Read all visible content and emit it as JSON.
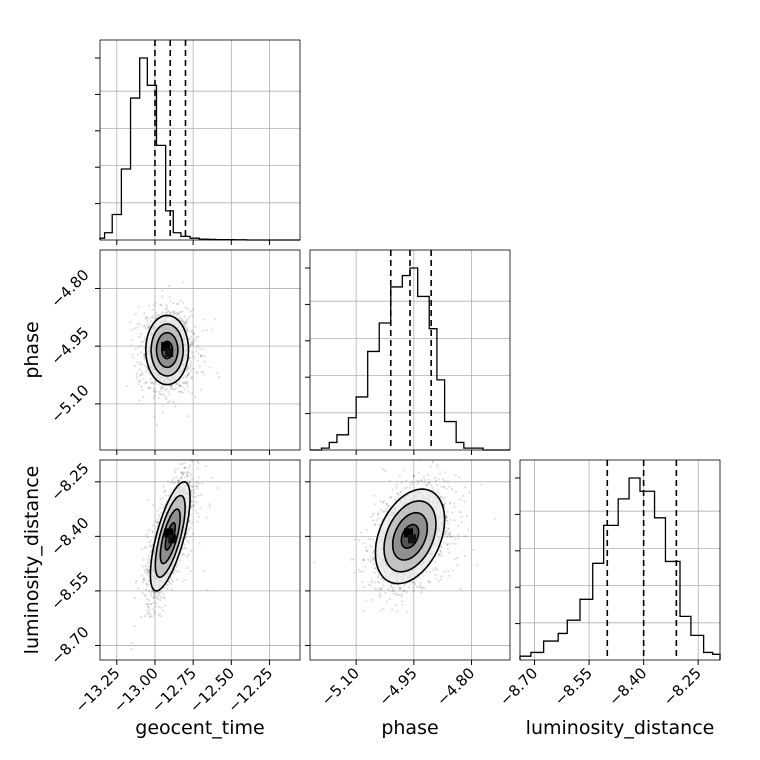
{
  "chart_data": {
    "type": "corner",
    "parameters": [
      "geocent_time",
      "phase",
      "luminosity_distance"
    ],
    "axis_labels": {
      "x": [
        "geocent_time",
        "phase",
        "luminosity_distance"
      ],
      "y": [
        "phase",
        "luminosity_distance"
      ]
    },
    "ranges": {
      "geocent_time": [
        -13.36,
        -12.05
      ],
      "phase": [
        -5.22,
        -4.7
      ],
      "luminosity_distance": [
        -8.74,
        -8.19
      ]
    },
    "ticks": {
      "geocent_time": {
        "values": [
          -13.25,
          -13.0,
          -12.75,
          -12.5,
          -12.25
        ],
        "labels": [
          "−13.25",
          "−13.00",
          "−12.75",
          "−12.50",
          "−12.25"
        ]
      },
      "phase": {
        "values": [
          -5.1,
          -4.95,
          -4.8
        ],
        "labels": [
          "−5.10",
          "−4.95",
          "−4.80"
        ]
      },
      "luminosity_distance": {
        "values": [
          -8.7,
          -8.55,
          -8.4,
          -8.25
        ],
        "labels": [
          "−8.70",
          "−8.55",
          "−8.40",
          "−8.25"
        ]
      }
    },
    "quantiles": {
      "geocent_time": [
        -13.0,
        -12.9,
        -12.8
      ],
      "phase": [
        -5.01,
        -4.96,
        -4.905
      ],
      "luminosity_distance": [
        -8.5,
        -8.4,
        -8.31
      ]
    },
    "histograms": {
      "geocent_time": {
        "edges": [
          -13.36,
          -13.33,
          -13.28,
          -13.22,
          -13.16,
          -13.1,
          -13.05,
          -12.99,
          -12.93,
          -12.88,
          -12.83,
          -12.77,
          -12.71,
          -12.65,
          -12.6,
          -12.54,
          -12.48,
          -12.4,
          -12.05
        ],
        "counts": [
          0.01,
          0.04,
          0.14,
          0.39,
          0.78,
          1.0,
          0.85,
          0.52,
          0.16,
          0.04,
          0.02,
          0.01,
          0.005,
          0.003,
          0.002,
          0.002,
          0.001,
          0.0
        ]
      },
      "phase": {
        "edges": [
          -5.22,
          -5.19,
          -5.17,
          -5.15,
          -5.12,
          -5.1,
          -5.07,
          -5.04,
          -5.01,
          -4.98,
          -4.96,
          -4.94,
          -4.91,
          -4.89,
          -4.87,
          -4.84,
          -4.82,
          -4.79,
          -4.77,
          -4.7
        ],
        "counts": [
          0.0,
          0.01,
          0.04,
          0.08,
          0.17,
          0.28,
          0.52,
          0.67,
          0.86,
          0.92,
          0.96,
          0.81,
          0.64,
          0.37,
          0.15,
          0.04,
          0.01,
          0.01,
          0.0
        ]
      },
      "luminosity_distance": {
        "edges": [
          -8.74,
          -8.71,
          -8.675,
          -8.635,
          -8.61,
          -8.575,
          -8.54,
          -8.51,
          -8.47,
          -8.44,
          -8.41,
          -8.37,
          -8.34,
          -8.3,
          -8.27,
          -8.235,
          -8.21,
          -8.19
        ],
        "counts": [
          0.02,
          0.04,
          0.1,
          0.14,
          0.21,
          0.32,
          0.51,
          0.71,
          0.85,
          0.96,
          0.89,
          0.75,
          0.52,
          0.23,
          0.13,
          0.04,
          0.03
        ]
      }
    },
    "pairs": [
      {
        "x": "geocent_time",
        "y": "phase",
        "peak": [
          -12.92,
          -4.96
        ],
        "sigma": [
          0.07,
          0.045
        ],
        "rho": 0.0,
        "contour_levels": [
          0.5,
          1.0,
          1.5,
          2.0
        ]
      },
      {
        "x": "geocent_time",
        "y": "luminosity_distance",
        "peak": [
          -12.9,
          -8.4
        ],
        "sigma": [
          0.065,
          0.075
        ],
        "rho": 0.7,
        "contour_levels": [
          0.5,
          1.0,
          1.5,
          2.0
        ]
      },
      {
        "x": "phase",
        "y": "luminosity_distance",
        "peak": [
          -4.96,
          -8.4
        ],
        "sigma": [
          0.045,
          0.065
        ],
        "rho": 0.35,
        "contour_levels": [
          0.5,
          1.0,
          1.5,
          2.0
        ]
      }
    ],
    "grid": true
  }
}
